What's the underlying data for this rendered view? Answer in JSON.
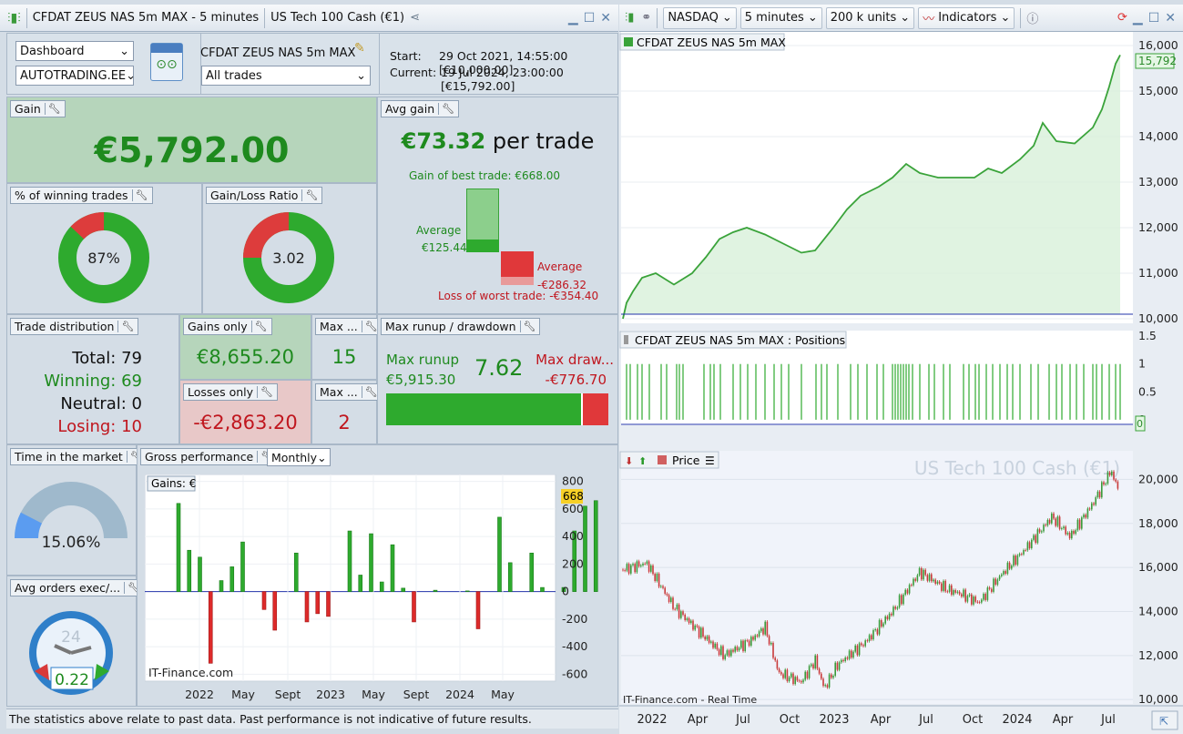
{
  "left_title": {
    "app": "CFDAT ZEUS NAS 5m MAX - 5 minutes",
    "instrument": "US Tech 100 Cash (€1)"
  },
  "right_toolbar": {
    "market": "NASDAQ",
    "timeframe": "5 minutes",
    "units": "200 k units",
    "indicators": "Indicators"
  },
  "header": {
    "view_select": "Dashboard",
    "account_select": "AUTOTRADING.EE",
    "system_name": "CFDAT ZEUS NAS 5m MAX",
    "trades_select": "All trades",
    "start_label": "Start:",
    "start_value": "29 Oct 2021, 14:55:00 [€10,000.00]",
    "current_label": "Current:",
    "current_value": "19 Jul 2024, 23:00:00 [€15,792.00]"
  },
  "gain": {
    "label": "Gain",
    "value": "€5,792.00"
  },
  "avg_gain": {
    "label": "Avg gain",
    "value": "€73.32",
    "unit": "per trade",
    "best": "Gain of best trade: €668.00",
    "avg_win_label": "Average",
    "avg_win_value": "€125.44",
    "avg_loss_label": "Average",
    "avg_loss_value": "-€286.32",
    "worst": "Loss of worst trade: -€354.40",
    "best_value": 668,
    "avg_win": 125.44,
    "avg_loss": -286.32,
    "worst_value": -354.4
  },
  "winning_pct": {
    "label": "% of winning trades",
    "value": "87%",
    "fraction": 0.87
  },
  "gain_loss": {
    "label": "Gain/Loss Ratio",
    "value": "3.02",
    "fraction": 0.75
  },
  "distribution": {
    "label": "Trade distribution",
    "total": "Total: 79",
    "winning": "Winning: 69",
    "neutral": "Neutral: 0",
    "losing": "Losing: 10"
  },
  "gains_only": {
    "label": "Gains only",
    "value": "€8,655.20"
  },
  "losses_only": {
    "label": "Losses only",
    "value": "-€2,863.20"
  },
  "max_wins": {
    "label": "Max ...",
    "value": "15"
  },
  "max_losses": {
    "label": "Max ...",
    "value": "2"
  },
  "runup": {
    "label": "Max runup / drawdown",
    "runup_label": "Max runup",
    "runup_value": "€5,915.30",
    "ratio": "7.62",
    "drawdown_label": "Max draw...",
    "drawdown_value": "-€776.70",
    "runup_fraction": 0.884
  },
  "time_market": {
    "label": "Time in the market",
    "value": "15.06%",
    "fraction": 0.1506
  },
  "avg_orders": {
    "label": "Avg orders exec/...",
    "value": "0.22",
    "clock": "24"
  },
  "gross": {
    "label": "Gross performance",
    "period": "Monthly",
    "legend": "Gains: €",
    "watermark": "IT-Finance.com",
    "last_label": "668"
  },
  "footer": "The statistics above relate to past data. Past performance is not indicative of future results.",
  "equity": {
    "title": "CFDAT ZEUS NAS 5m MAX",
    "last": "15,792"
  },
  "positions": {
    "title": "CFDAT ZEUS NAS 5m MAX : Positions",
    "last": "0"
  },
  "price": {
    "title": "Price",
    "watermark": "US Tech 100 Cash (€1)",
    "source": "IT-Finance.com - Real Time"
  },
  "timeaxis": [
    "2022",
    "Apr",
    "Jul",
    "Oct",
    "2023",
    "Apr",
    "Jul",
    "Oct",
    "2024",
    "Apr",
    "Jul"
  ],
  "gross_xaxis": [
    "2022",
    "May",
    "Sept",
    "2023",
    "May",
    "Sept",
    "2024",
    "May"
  ],
  "chart_data": [
    {
      "type": "bar",
      "title": "Gross performance",
      "legend": "Gains: €",
      "y_ticks": [
        800,
        600,
        400,
        200,
        0,
        -200,
        -400,
        -600
      ],
      "ylim": [
        -650,
        850
      ],
      "x_ticks": [
        "2022",
        "May",
        "Sept",
        "2023",
        "May",
        "Sept",
        "2024",
        "May"
      ],
      "values": [
        640,
        300,
        250,
        -520,
        80,
        180,
        360,
        0,
        -130,
        -280,
        0,
        280,
        -220,
        -160,
        -180,
        0,
        440,
        120,
        420,
        70,
        340,
        25,
        -220,
        0,
        10,
        0,
        0,
        5,
        -270,
        0,
        540,
        210,
        0,
        280,
        30,
        0,
        30,
        440,
        620,
        660
      ]
    },
    {
      "type": "line",
      "title": "CFDAT ZEUS NAS 5m MAX",
      "y_ticks": [
        10000,
        11000,
        12000,
        13000,
        14000,
        15000,
        16000
      ],
      "ylim": [
        9900,
        16300
      ],
      "last": 15792
    },
    {
      "type": "bar",
      "title": "CFDAT ZEUS NAS 5m MAX : Positions",
      "y_ticks": [
        1.5,
        1,
        0.5,
        0
      ],
      "ylim": [
        -0.1,
        1.6
      ]
    },
    {
      "type": "line",
      "title": "Price",
      "y_ticks": [
        20000,
        18000,
        16000,
        14000,
        12000,
        10000
      ],
      "ylim": [
        9800,
        21300
      ]
    }
  ]
}
